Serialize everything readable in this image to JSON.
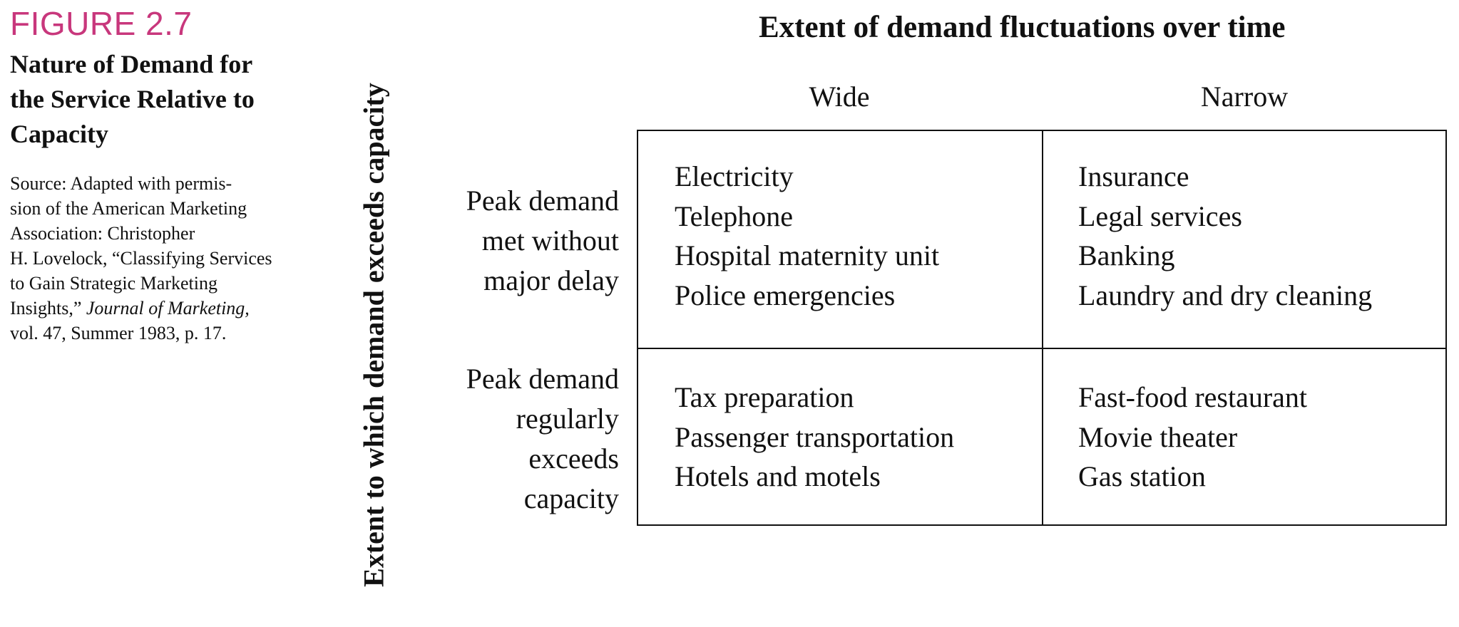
{
  "figure": {
    "label": "FIGURE 2.7",
    "title_lines": [
      "Nature of Demand for",
      "the Service Relative to",
      "Capacity"
    ],
    "source": {
      "line1": "Source: Adapted with permis-",
      "line2": "sion of the American Marketing",
      "line3": "Association: Christopher",
      "line4": "H. Lovelock, “Classifying Services",
      "line5": "to Gain Strategic Marketing",
      "line6_plain": "Insights,” ",
      "line6_italic": "Journal of Marketing,",
      "line7": "vol. 47, Summer 1983, p. 17."
    }
  },
  "matrix": {
    "x_axis_title": "Extent of demand fluctuations over time",
    "y_axis_title": "Extent to which demand exceeds capacity",
    "columns": [
      "Wide",
      "Narrow"
    ],
    "rows": [
      {
        "label_lines": [
          "Peak demand",
          "met without",
          "major delay"
        ]
      },
      {
        "label_lines": [
          "Peak demand",
          "regularly",
          "exceeds",
          "capacity"
        ]
      }
    ],
    "cells": {
      "row1_wide": [
        "Electricity",
        "Telephone",
        "Hospital maternity unit",
        "Police emergencies"
      ],
      "row1_narrow": [
        "Insurance",
        "Legal services",
        "Banking",
        "Laundry and dry cleaning"
      ],
      "row2_wide": [
        "Tax preparation",
        "Passenger transportation",
        "Hotels and motels"
      ],
      "row2_narrow": [
        "Fast-food restaurant",
        "Movie theater",
        "Gas station"
      ]
    }
  },
  "colors": {
    "figure_label": "#c8377c",
    "text": "#111111",
    "lines": "#111111"
  }
}
